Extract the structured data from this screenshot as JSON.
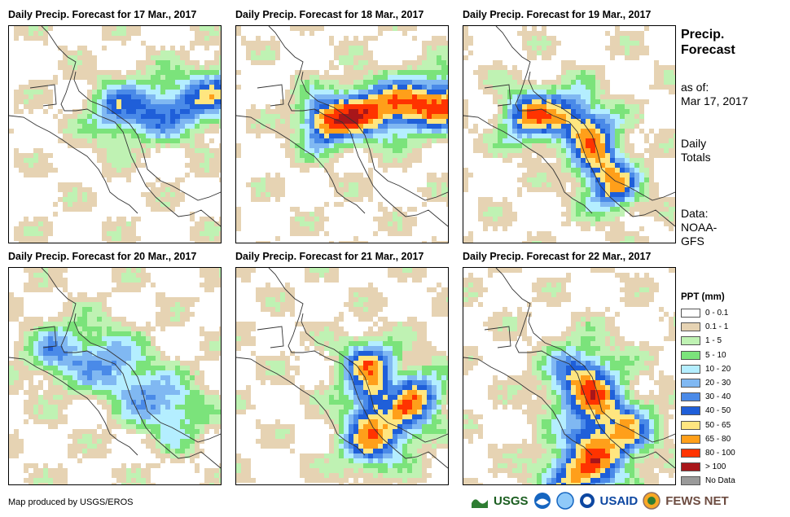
{
  "panels": [
    {
      "title": "Daily Precip. Forecast for 17 Mar., 2017"
    },
    {
      "title": "Daily Precip. Forecast for 18 Mar., 2017"
    },
    {
      "title": "Daily Precip. Forecast for 19 Mar., 2017"
    },
    {
      "title": "Daily Precip. Forecast for 20 Mar., 2017"
    },
    {
      "title": "Daily Precip. Forecast for 21 Mar., 2017"
    },
    {
      "title": "Daily Precip. Forecast for 22 Mar., 2017"
    }
  ],
  "side": {
    "title_line1": "Precip.",
    "title_line2": "Forecast",
    "asof_line1": "as of:",
    "asof_line2": "Mar 17, 2017",
    "totals_line1": "Daily",
    "totals_line2": "Totals",
    "data_line1": "Data:",
    "data_line2": "NOAA-",
    "data_line3": "GFS"
  },
  "legend": {
    "title": "PPT (mm)",
    "items": [
      {
        "label": "0 - 0.1",
        "color": "#ffffff"
      },
      {
        "label": "0.1 - 1",
        "color": "#e6d3b3"
      },
      {
        "label": "1 - 5",
        "color": "#bff2b3"
      },
      {
        "label": "5 - 10",
        "color": "#7be37b"
      },
      {
        "label": "10 - 20",
        "color": "#b4eeff"
      },
      {
        "label": "20 - 30",
        "color": "#80b8f2"
      },
      {
        "label": "30 - 40",
        "color": "#4a8ae8"
      },
      {
        "label": "40 - 50",
        "color": "#1f5fd9"
      },
      {
        "label": "50 - 65",
        "color": "#ffe680"
      },
      {
        "label": "65 - 80",
        "color": "#ff9f1a"
      },
      {
        "label": "80 - 100",
        "color": "#ff3300"
      },
      {
        "label": "> 100",
        "color": "#a8161a"
      },
      {
        "label": "No Data",
        "color": "#9a9a9a"
      }
    ]
  },
  "footer": {
    "credit": "Map produced by USGS/EROS"
  },
  "logos": {
    "usgs": "USGS",
    "usaid": "USAID",
    "fewsnet": "FEWS NET"
  }
}
